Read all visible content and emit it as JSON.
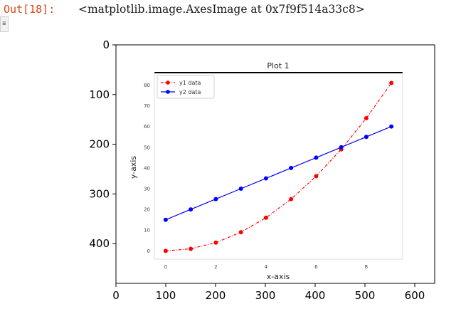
{
  "output_cell": {
    "prompt": "Out[18]:",
    "text": "<matplotlib.image.AxesImage at 0x7f9f514a33c8>"
  },
  "side_button": {
    "icon": "collapse-output-icon",
    "glyph": "≣"
  },
  "outer_axes": {
    "x_ticks": [
      "0",
      "100",
      "200",
      "300",
      "400",
      "500",
      "600"
    ],
    "x_tick_values": [
      0,
      100,
      200,
      300,
      400,
      500,
      600
    ],
    "y_ticks": [
      "0",
      "100",
      "200",
      "300",
      "400"
    ],
    "y_tick_values": [
      0,
      100,
      200,
      300,
      400
    ],
    "xlim": [
      0,
      640
    ],
    "ylim": [
      480,
      0
    ]
  },
  "chart_data": {
    "type": "line",
    "title": "Plot 1",
    "xlabel": "x-axis",
    "ylabel": "y-axis",
    "x": [
      0,
      1,
      2,
      3,
      4,
      5,
      6,
      7,
      8,
      9
    ],
    "series": [
      {
        "name": "y1 data",
        "color": "#ff0000",
        "style": "dashed-dot-markers",
        "values": [
          0,
          1,
          4,
          9,
          16,
          25,
          36,
          49,
          64,
          81
        ]
      },
      {
        "name": "y2 data",
        "color": "#0000ff",
        "style": "solid-dot-markers",
        "values": [
          15,
          20,
          25,
          30,
          35,
          40,
          45,
          50,
          55,
          60
        ]
      }
    ],
    "x_ticks": [
      "0",
      "2",
      "4",
      "6",
      "8"
    ],
    "x_tick_values": [
      0,
      2,
      4,
      6,
      8
    ],
    "y_ticks": [
      "0",
      "10",
      "20",
      "30",
      "40",
      "50",
      "60",
      "70",
      "80"
    ],
    "y_tick_values": [
      0,
      10,
      20,
      30,
      40,
      50,
      60,
      70,
      80
    ],
    "xlim": [
      -0.45,
      9.45
    ],
    "ylim": [
      -4,
      86
    ],
    "grid": false,
    "legend": "top-left"
  }
}
